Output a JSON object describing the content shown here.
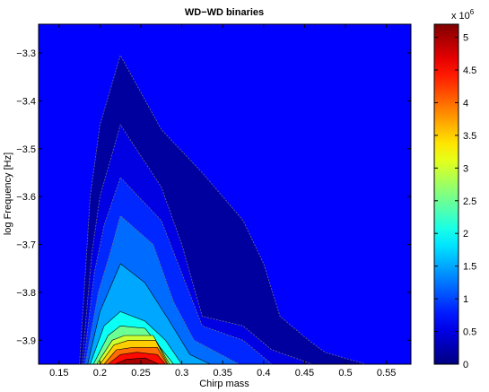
{
  "chart_data": {
    "type": "contour",
    "title": "WD−WD binaries",
    "xlabel": "Chirp mass",
    "ylabel": "log Frequency [Hz]",
    "xlim": [
      0.125,
      0.58
    ],
    "ylim": [
      -3.95,
      -3.24
    ],
    "x_ticks": [
      {
        "v": 0.15,
        "label": "0.15"
      },
      {
        "v": 0.2,
        "label": "0.2"
      },
      {
        "v": 0.25,
        "label": "0.25"
      },
      {
        "v": 0.3,
        "label": "0.3"
      },
      {
        "v": 0.35,
        "label": "0.35"
      },
      {
        "v": 0.4,
        "label": "0.4"
      },
      {
        "v": 0.45,
        "label": "0.45"
      },
      {
        "v": 0.5,
        "label": "0.5"
      },
      {
        "v": 0.55,
        "label": "0.55"
      }
    ],
    "y_ticks": [
      {
        "v": -3.3,
        "label": "−3.3"
      },
      {
        "v": -3.4,
        "label": "−3.4"
      },
      {
        "v": -3.5,
        "label": "−3.5"
      },
      {
        "v": -3.6,
        "label": "−3.6"
      },
      {
        "v": -3.7,
        "label": "−3.7"
      },
      {
        "v": -3.8,
        "label": "−3.8"
      },
      {
        "v": -3.9,
        "label": "−3.9"
      }
    ],
    "colorbar": {
      "range": [
        0,
        5.2
      ],
      "multiplier_base": "x 10",
      "multiplier_exp": "6",
      "ticks": [
        {
          "v": 0,
          "label": "0"
        },
        {
          "v": 0.5,
          "label": "0.5"
        },
        {
          "v": 1,
          "label": "1"
        },
        {
          "v": 1.5,
          "label": "1.5"
        },
        {
          "v": 2,
          "label": "2"
        },
        {
          "v": 2.5,
          "label": "2.5"
        },
        {
          "v": 3,
          "label": "3"
        },
        {
          "v": 3.5,
          "label": "3.5"
        },
        {
          "v": 4,
          "label": "4"
        },
        {
          "v": 4.5,
          "label": "4.5"
        },
        {
          "v": 5,
          "label": "5"
        }
      ]
    },
    "contours": [
      {
        "level": 0.16,
        "points": [
          [
            0.175,
            -3.95
          ],
          [
            0.188,
            -3.6
          ],
          [
            0.2,
            -3.45
          ],
          [
            0.225,
            -3.305
          ],
          [
            0.275,
            -3.46
          ],
          [
            0.325,
            -3.55
          ],
          [
            0.375,
            -3.65
          ],
          [
            0.4,
            -3.74
          ],
          [
            0.42,
            -3.85
          ],
          [
            0.455,
            -3.9
          ],
          [
            0.475,
            -3.925
          ],
          [
            0.525,
            -3.95
          ]
        ]
      },
      {
        "level": 0.5,
        "points": [
          [
            0.178,
            -3.95
          ],
          [
            0.19,
            -3.72
          ],
          [
            0.2,
            -3.6
          ],
          [
            0.225,
            -3.45
          ],
          [
            0.275,
            -3.58
          ],
          [
            0.3,
            -3.7
          ],
          [
            0.325,
            -3.85
          ],
          [
            0.375,
            -3.87
          ],
          [
            0.41,
            -3.92
          ],
          [
            0.46,
            -3.95
          ]
        ]
      },
      {
        "level": 0.85,
        "points": [
          [
            0.18,
            -3.95
          ],
          [
            0.193,
            -3.76
          ],
          [
            0.205,
            -3.66
          ],
          [
            0.225,
            -3.56
          ],
          [
            0.275,
            -3.65
          ],
          [
            0.3,
            -3.76
          ],
          [
            0.325,
            -3.87
          ],
          [
            0.375,
            -3.9
          ],
          [
            0.41,
            -3.95
          ]
        ]
      },
      {
        "level": 1.2,
        "points": [
          [
            0.182,
            -3.95
          ],
          [
            0.198,
            -3.8
          ],
          [
            0.212,
            -3.72
          ],
          [
            0.225,
            -3.64
          ],
          [
            0.265,
            -3.7
          ],
          [
            0.29,
            -3.82
          ],
          [
            0.315,
            -3.9
          ],
          [
            0.37,
            -3.95
          ]
        ]
      },
      {
        "level": 1.5,
        "points": [
          [
            0.185,
            -3.95
          ],
          [
            0.2,
            -3.84
          ],
          [
            0.215,
            -3.78
          ],
          [
            0.225,
            -3.74
          ],
          [
            0.255,
            -3.78
          ],
          [
            0.285,
            -3.86
          ],
          [
            0.31,
            -3.93
          ],
          [
            0.335,
            -3.95
          ]
        ]
      },
      {
        "level": 2.0,
        "points": [
          [
            0.188,
            -3.95
          ],
          [
            0.205,
            -3.87
          ],
          [
            0.225,
            -3.84
          ],
          [
            0.255,
            -3.86
          ],
          [
            0.28,
            -3.9
          ],
          [
            0.3,
            -3.95
          ]
        ]
      },
      {
        "level": 2.5,
        "points": [
          [
            0.192,
            -3.95
          ],
          [
            0.21,
            -3.89
          ],
          [
            0.225,
            -3.87
          ],
          [
            0.255,
            -3.875
          ],
          [
            0.29,
            -3.95
          ]
        ]
      },
      {
        "level": 3.0,
        "points": [
          [
            0.196,
            -3.95
          ],
          [
            0.215,
            -3.9
          ],
          [
            0.23,
            -3.89
          ],
          [
            0.265,
            -3.89
          ],
          [
            0.285,
            -3.95
          ]
        ]
      },
      {
        "level": 3.5,
        "points": [
          [
            0.2,
            -3.95
          ],
          [
            0.217,
            -3.91
          ],
          [
            0.235,
            -3.9
          ],
          [
            0.268,
            -3.9
          ],
          [
            0.283,
            -3.95
          ]
        ]
      },
      {
        "level": 4.0,
        "points": [
          [
            0.205,
            -3.95
          ],
          [
            0.22,
            -3.92
          ],
          [
            0.24,
            -3.915
          ],
          [
            0.27,
            -3.915
          ],
          [
            0.282,
            -3.95
          ]
        ]
      },
      {
        "level": 4.5,
        "points": [
          [
            0.21,
            -3.95
          ],
          [
            0.225,
            -3.93
          ],
          [
            0.245,
            -3.925
          ],
          [
            0.27,
            -3.93
          ],
          [
            0.28,
            -3.95
          ]
        ]
      },
      {
        "level": 5.0,
        "points": [
          [
            0.218,
            -3.95
          ],
          [
            0.232,
            -3.94
          ],
          [
            0.255,
            -3.937
          ],
          [
            0.272,
            -3.95
          ]
        ]
      }
    ]
  }
}
